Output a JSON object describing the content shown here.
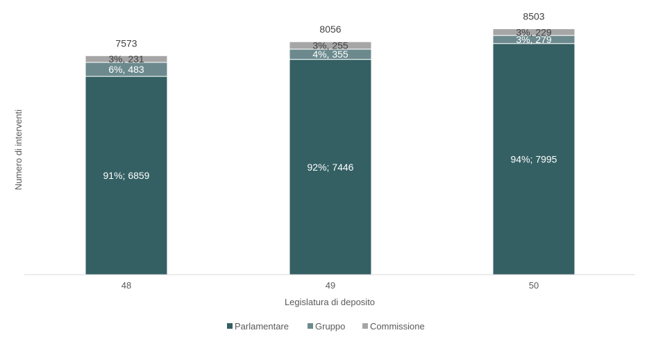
{
  "chart_data": {
    "type": "bar",
    "stacked": true,
    "categories": [
      "48",
      "49",
      "50"
    ],
    "series": [
      {
        "name": "Parlamentare",
        "values": [
          6859,
          7446,
          7995
        ],
        "labels": [
          "91%; 6859",
          "92%; 7446",
          "94%; 7995"
        ],
        "color": "#346064"
      },
      {
        "name": "Gruppo",
        "values": [
          483,
          355,
          279
        ],
        "labels": [
          "6%, 483",
          "4%, 355",
          "3%, 279"
        ],
        "color": "#6c8a8e"
      },
      {
        "name": "Commissione",
        "values": [
          231,
          255,
          229
        ],
        "labels": [
          "3%, 231",
          "3%, 255",
          "3%, 229"
        ],
        "color": "#a6a6a6"
      }
    ],
    "totals": [
      "7573",
      "8056",
      "8503"
    ],
    "xlabel": "Legislatura di deposito",
    "ylabel": "Numero di interventi",
    "ylim": [
      0,
      9500
    ],
    "grid": false,
    "legend": "bottom"
  }
}
